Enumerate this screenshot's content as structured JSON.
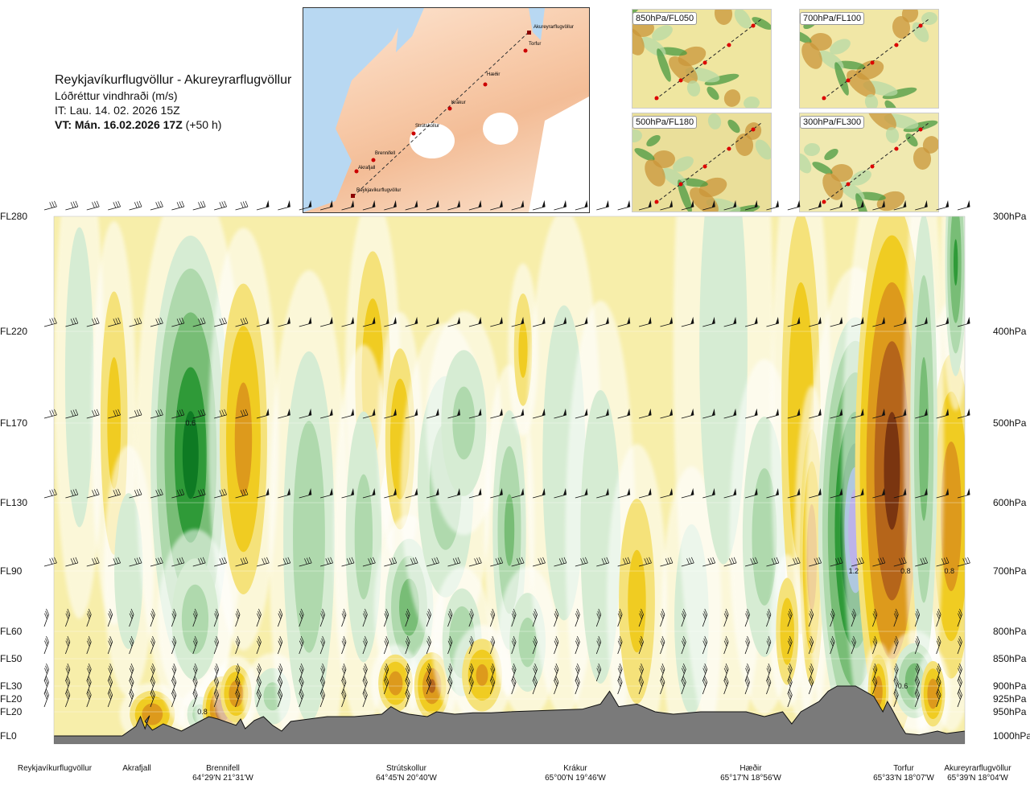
{
  "header": {
    "route": "Reykjavíkurflugvöllur - Akureyrarflugvöllur",
    "variable": "Lóðréttur vindhraði (m/s)",
    "it": "IT: Lau. 14. 02. 2026 15Z",
    "vt_bold": "VT: Mán. 16.02.2026 17Z",
    "vt_suffix": "(+50 h)"
  },
  "route_map": {
    "waypoints": [
      "Akureyrarflugvöllur",
      "Torfur",
      "Hæðir",
      "Krákur",
      "Strútskollur",
      "Brennifell",
      "Akrafjall",
      "Reykjavíkurflugvöllur"
    ]
  },
  "mini_maps": [
    {
      "label": "850hPa/FL050"
    },
    {
      "label": "700hPa/FL100"
    },
    {
      "label": "500hPa/FL180"
    },
    {
      "label": "300hPa/FL300"
    }
  ],
  "chart_data": {
    "type": "heatmap",
    "title": "Lóðréttur vindhraði (m/s)",
    "flight_levels": [
      "FL280",
      "FL220",
      "FL170",
      "FL130",
      "FL90",
      "FL60",
      "FL50",
      "FL30",
      "FL20",
      "FL20",
      "FL0"
    ],
    "pressure_levels": [
      "300hPa",
      "400hPa",
      "500hPa",
      "600hPa",
      "700hPa",
      "800hPa",
      "850hPa",
      "900hPa",
      "925hPa",
      "950hPa",
      "1000hPa"
    ],
    "x_route_fraction_range": [
      0,
      1
    ],
    "cross_section_points": [
      {
        "name": "Reykjavíkurflugvöllur",
        "coord": ""
      },
      {
        "name": "Akrafjall",
        "coord": ""
      },
      {
        "name": "Brennifell",
        "coord": "64°29'N 21°31'W"
      },
      {
        "name": "Strútskollur",
        "coord": "64°45'N 20°40'W"
      },
      {
        "name": "Krákur",
        "coord": "65°00'N 19°46'W"
      },
      {
        "name": "Hæðir",
        "coord": "65°17'N 18°56'W"
      },
      {
        "name": "Torfur",
        "coord": "65°33'N 18°07'W"
      },
      {
        "name": "Akureyrarflugvöllur",
        "coord": "65°39'N 18°04'W"
      }
    ],
    "contour_labels": [
      {
        "value": "0.6",
        "x": 0.15,
        "pressure_hpa": 500
      },
      {
        "value": "1.2",
        "x": 0.878,
        "pressure_hpa": 700
      },
      {
        "value": "0.8",
        "x": 0.935,
        "pressure_hpa": 700
      },
      {
        "value": "0.8",
        "x": 0.983,
        "pressure_hpa": 700
      },
      {
        "value": "0.6",
        "x": 0.932,
        "pressure_hpa": 900
      },
      {
        "value": "0.8",
        "x": 0.163,
        "pressure_hpa": 950
      }
    ],
    "cells": [
      {
        "x": 0.028,
        "p": 450,
        "v": 0.2,
        "sx": 0.01,
        "sp": 120
      },
      {
        "x": 0.066,
        "p": 500,
        "v": -0.25,
        "sx": 0.009,
        "sp": 110
      },
      {
        "x": 0.082,
        "p": 700,
        "v": 0.2,
        "sx": 0.01,
        "sp": 90
      },
      {
        "x": 0.108,
        "p": 955,
        "v": -0.6,
        "sx": 0.013,
        "sp": 25
      },
      {
        "x": 0.15,
        "p": 540,
        "v": 0.95,
        "sx": 0.022,
        "sp": 160
      },
      {
        "x": 0.155,
        "p": 780,
        "v": 0.3,
        "sx": 0.015,
        "sp": 70
      },
      {
        "x": 0.16,
        "p": 955,
        "v": 0.3,
        "sx": 0.008,
        "sp": 20
      },
      {
        "x": 0.208,
        "p": 520,
        "v": -0.5,
        "sx": 0.014,
        "sp": 120
      },
      {
        "x": 0.185,
        "p": 945,
        "v": -0.9,
        "sx": 0.011,
        "sp": 35
      },
      {
        "x": 0.2,
        "p": 915,
        "v": -0.6,
        "sx": 0.009,
        "sp": 30
      },
      {
        "x": 0.24,
        "p": 920,
        "v": 0.25,
        "sx": 0.012,
        "sp": 35
      },
      {
        "x": 0.28,
        "p": 650,
        "v": 0.35,
        "sx": 0.016,
        "sp": 180
      },
      {
        "x": 0.35,
        "p": 450,
        "v": -0.35,
        "sx": 0.011,
        "sp": 90
      },
      {
        "x": 0.34,
        "p": 650,
        "v": 0.25,
        "sx": 0.012,
        "sp": 130
      },
      {
        "x": 0.38,
        "p": 520,
        "v": -0.4,
        "sx": 0.009,
        "sp": 70
      },
      {
        "x": 0.39,
        "p": 760,
        "v": 0.55,
        "sx": 0.014,
        "sp": 70
      },
      {
        "x": 0.375,
        "p": 895,
        "v": -0.55,
        "sx": 0.01,
        "sp": 30
      },
      {
        "x": 0.415,
        "p": 900,
        "v": -0.7,
        "sx": 0.01,
        "sp": 35
      },
      {
        "x": 0.43,
        "p": 580,
        "v": 0.3,
        "sx": 0.018,
        "sp": 100
      },
      {
        "x": 0.45,
        "p": 500,
        "v": 0.25,
        "sx": 0.015,
        "sp": 60
      },
      {
        "x": 0.448,
        "p": 820,
        "v": 0.4,
        "sx": 0.012,
        "sp": 60
      },
      {
        "x": 0.47,
        "p": 880,
        "v": -0.45,
        "sx": 0.012,
        "sp": 40
      },
      {
        "x": 0.5,
        "p": 640,
        "v": 0.45,
        "sx": 0.01,
        "sp": 110
      },
      {
        "x": 0.52,
        "p": 820,
        "v": 0.25,
        "sx": 0.012,
        "sp": 60
      },
      {
        "x": 0.515,
        "p": 420,
        "v": -0.25,
        "sx": 0.006,
        "sp": 40
      },
      {
        "x": 0.56,
        "p": 550,
        "v": 0.2,
        "sx": 0.015,
        "sp": 150
      },
      {
        "x": 0.6,
        "p": 650,
        "v": 0.2,
        "sx": 0.014,
        "sp": 160
      },
      {
        "x": 0.64,
        "p": 750,
        "v": -0.25,
        "sx": 0.012,
        "sp": 120
      },
      {
        "x": 0.7,
        "p": 780,
        "v": 0.2,
        "sx": 0.012,
        "sp": 120
      },
      {
        "x": 0.735,
        "p": 420,
        "v": 0.1,
        "sx": 0.02,
        "sp": 200
      },
      {
        "x": 0.78,
        "p": 650,
        "v": 0.3,
        "sx": 0.014,
        "sp": 120
      },
      {
        "x": 0.82,
        "p": 500,
        "v": -0.4,
        "sx": 0.012,
        "sp": 160
      },
      {
        "x": 0.832,
        "p": 680,
        "v": -0.55,
        "sx": 0.007,
        "sp": 120
      },
      {
        "x": 0.805,
        "p": 800,
        "v": -0.35,
        "sx": 0.007,
        "sp": 60
      },
      {
        "x": 0.88,
        "p": 640,
        "v": 1.3,
        "sx": 0.02,
        "sp": 175
      },
      {
        "x": 0.92,
        "p": 560,
        "v": -1.1,
        "sx": 0.02,
        "sp": 200
      },
      {
        "x": 0.985,
        "p": 620,
        "v": -0.6,
        "sx": 0.013,
        "sp": 140
      },
      {
        "x": 0.955,
        "p": 520,
        "v": 0.5,
        "sx": 0.008,
        "sp": 170
      },
      {
        "x": 0.99,
        "p": 340,
        "v": 0.7,
        "sx": 0.006,
        "sp": 60
      },
      {
        "x": 0.945,
        "p": 890,
        "v": 0.6,
        "sx": 0.012,
        "sp": 40
      },
      {
        "x": 0.905,
        "p": 910,
        "v": -0.55,
        "sx": 0.006,
        "sp": 40
      },
      {
        "x": 0.965,
        "p": 915,
        "v": -0.6,
        "sx": 0.007,
        "sp": 35
      }
    ],
    "terrain": [
      [
        0,
        1000
      ],
      [
        0.075,
        1000
      ],
      [
        0.09,
        980
      ],
      [
        0.095,
        960
      ],
      [
        0.1,
        985
      ],
      [
        0.1,
        985
      ],
      [
        0.105,
        958
      ],
      [
        0.1,
        970
      ],
      [
        0.108,
        988
      ],
      [
        0.112,
        984
      ],
      [
        0.12,
        975
      ],
      [
        0.14,
        990
      ],
      [
        0.16,
        970
      ],
      [
        0.17,
        960
      ],
      [
        0.18,
        965
      ],
      [
        0.2,
        978
      ],
      [
        0.205,
        965
      ],
      [
        0.21,
        985
      ],
      [
        0.22,
        968
      ],
      [
        0.23,
        960
      ],
      [
        0.24,
        978
      ],
      [
        0.25,
        990
      ],
      [
        0.26,
        970
      ],
      [
        0.28,
        965
      ],
      [
        0.3,
        960
      ],
      [
        0.33,
        960
      ],
      [
        0.36,
        955
      ],
      [
        0.37,
        940
      ],
      [
        0.38,
        950
      ],
      [
        0.39,
        955
      ],
      [
        0.41,
        960
      ],
      [
        0.42,
        950
      ],
      [
        0.44,
        955
      ],
      [
        0.46,
        952
      ],
      [
        0.48,
        952
      ],
      [
        0.5,
        950
      ],
      [
        0.53,
        948
      ],
      [
        0.56,
        946
      ],
      [
        0.58,
        945
      ],
      [
        0.6,
        935
      ],
      [
        0.61,
        910
      ],
      [
        0.62,
        940
      ],
      [
        0.64,
        935
      ],
      [
        0.66,
        950
      ],
      [
        0.68,
        955
      ],
      [
        0.71,
        950
      ],
      [
        0.73,
        950
      ],
      [
        0.76,
        950
      ],
      [
        0.78,
        960
      ],
      [
        0.8,
        950
      ],
      [
        0.81,
        975
      ],
      [
        0.82,
        950
      ],
      [
        0.83,
        940
      ],
      [
        0.84,
        930
      ],
      [
        0.85,
        910
      ],
      [
        0.86,
        900
      ],
      [
        0.88,
        900
      ],
      [
        0.9,
        920
      ],
      [
        0.91,
        950
      ],
      [
        0.915,
        930
      ],
      [
        0.92,
        945
      ],
      [
        0.93,
        980
      ],
      [
        0.935,
        995
      ],
      [
        0.95,
        998
      ],
      [
        0.97,
        990
      ],
      [
        0.98,
        995
      ],
      [
        1,
        990
      ],
      [
        1,
        1000
      ]
    ]
  }
}
